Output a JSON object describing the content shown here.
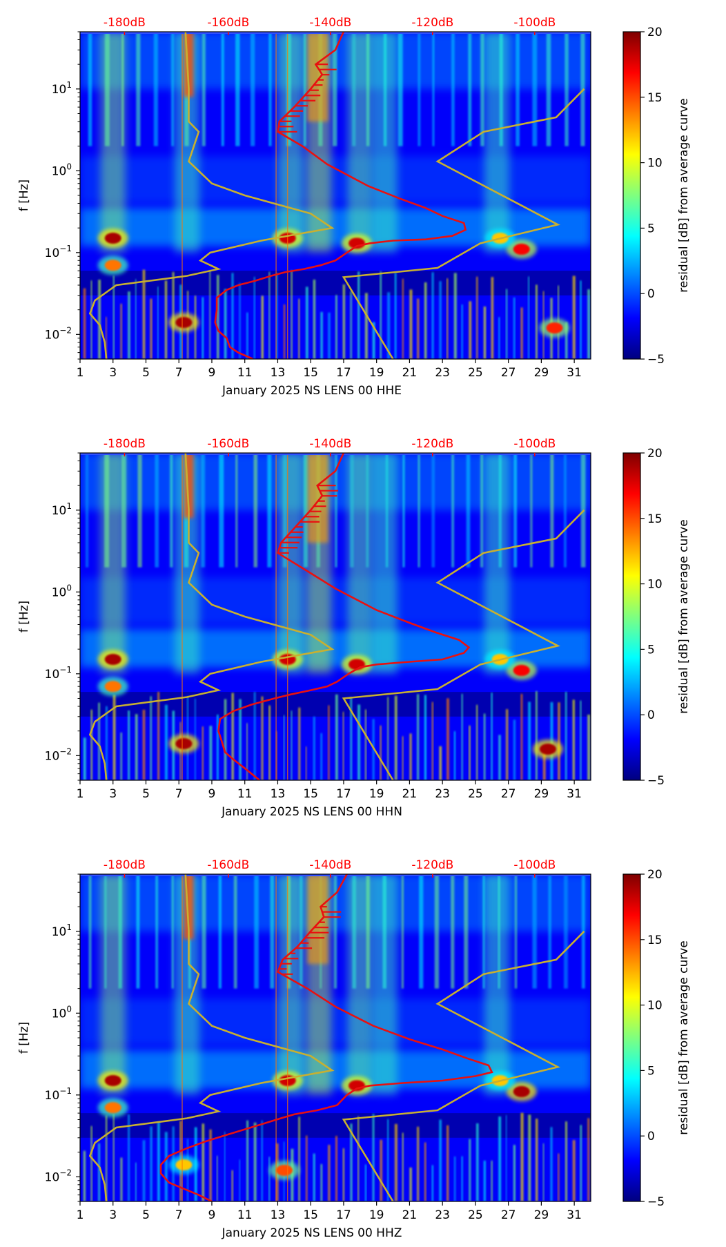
{
  "chart_data": {
    "type": "heatmap",
    "x_ticks": [
      1,
      3,
      5,
      7,
      9,
      11,
      13,
      15,
      17,
      19,
      21,
      23,
      25,
      27,
      29,
      31
    ],
    "xlim": [
      1,
      32
    ],
    "y_scale": "log",
    "ylim": [
      0.005,
      50
    ],
    "y_ticks": [
      {
        "value": 0.01,
        "base": "10",
        "exp": "−2"
      },
      {
        "value": 0.1,
        "base": "10",
        "exp": "−1"
      },
      {
        "value": 1,
        "base": "10",
        "exp": "0"
      },
      {
        "value": 10,
        "base": "10",
        "exp": "1"
      }
    ],
    "ylabel": "f [Hz]",
    "top_db_ticks": [
      {
        "label": "-180dB",
        "x": 3.7
      },
      {
        "label": "-160dB",
        "x": 10.0
      },
      {
        "label": "-140dB",
        "x": 16.2
      },
      {
        "label": "-120dB",
        "x": 22.4
      },
      {
        "label": "-100dB",
        "x": 28.6
      }
    ],
    "colorbar": {
      "label": "residual [dB] from average curve",
      "range": [
        -5,
        20
      ],
      "ticks": [
        {
          "value": 20,
          "label": "20"
        },
        {
          "value": 15,
          "label": "15"
        },
        {
          "value": 10,
          "label": "10"
        },
        {
          "value": 5,
          "label": "5"
        },
        {
          "value": 0,
          "label": "0"
        },
        {
          "value": -5,
          "label": "−5"
        }
      ],
      "colors": [
        "#00007f",
        "#0000ff",
        "#007fff",
        "#00ffff",
        "#7fff7f",
        "#ffff00",
        "#ff7f00",
        "#ff0000",
        "#7f0000"
      ]
    },
    "noise_model_low": [
      [
        2.6,
        0.005
      ],
      [
        2.5,
        0.008
      ],
      [
        2.2,
        0.013
      ],
      [
        1.6,
        0.018
      ],
      [
        1.9,
        0.026
      ],
      [
        3.2,
        0.04
      ],
      [
        7.5,
        0.052
      ],
      [
        9.4,
        0.063
      ],
      [
        8.3,
        0.08
      ],
      [
        8.9,
        0.1
      ],
      [
        12.0,
        0.14
      ],
      [
        16.3,
        0.2
      ],
      [
        15.0,
        0.3
      ],
      [
        11.0,
        0.5
      ],
      [
        9.0,
        0.7
      ],
      [
        7.6,
        1.3
      ],
      [
        8.2,
        3
      ],
      [
        7.6,
        4
      ],
      [
        7.6,
        10
      ],
      [
        7.4,
        50
      ]
    ],
    "noise_model_high": [
      [
        20.0,
        0.005
      ],
      [
        17.0,
        0.05
      ],
      [
        22.7,
        0.065
      ],
      [
        25.3,
        0.13
      ],
      [
        30.0,
        0.22
      ],
      [
        22.7,
        1.3
      ],
      [
        25.5,
        3
      ],
      [
        29.9,
        4.5
      ],
      [
        31.6,
        10
      ]
    ],
    "panels": [
      {
        "xlabel": "January 2025 NS LENS 00 HHE",
        "mean_curve": [
          [
            11.5,
            0.005
          ],
          [
            10.6,
            0.006
          ],
          [
            10.1,
            0.007
          ],
          [
            9.9,
            0.009
          ],
          [
            9.4,
            0.011
          ],
          [
            9.2,
            0.014
          ],
          [
            9.3,
            0.02
          ],
          [
            9.3,
            0.028
          ],
          [
            9.9,
            0.035
          ],
          [
            10.6,
            0.04
          ],
          [
            11.6,
            0.045
          ],
          [
            12.6,
            0.052
          ],
          [
            13.5,
            0.058
          ],
          [
            14.6,
            0.063
          ],
          [
            15.6,
            0.07
          ],
          [
            16.5,
            0.08
          ],
          [
            17.2,
            0.1
          ],
          [
            17.8,
            0.12
          ],
          [
            18.6,
            0.13
          ],
          [
            20.0,
            0.14
          ],
          [
            22.0,
            0.145
          ],
          [
            23.6,
            0.16
          ],
          [
            24.4,
            0.19
          ],
          [
            24.3,
            0.23
          ],
          [
            23.0,
            0.28
          ],
          [
            22.0,
            0.35
          ],
          [
            20.5,
            0.45
          ],
          [
            18.5,
            0.65
          ],
          [
            16.0,
            1.2
          ],
          [
            14.5,
            2.0
          ],
          [
            13.0,
            3.0
          ],
          [
            13.1,
            4.0
          ],
          [
            14.0,
            6.0
          ],
          [
            15.0,
            10.0
          ],
          [
            15.7,
            15
          ],
          [
            15.3,
            20
          ],
          [
            16.5,
            30
          ],
          [
            17.0,
            50
          ]
        ],
        "events": [
          {
            "day": 3.0,
            "f": 0.15,
            "v": 19
          },
          {
            "day": 3.0,
            "f": 0.07,
            "v": 14
          },
          {
            "day": 7.3,
            "f": 0.014,
            "v": 19
          },
          {
            "day": 13.6,
            "f": 0.15,
            "v": 18
          },
          {
            "day": 17.8,
            "f": 0.13,
            "v": 18
          },
          {
            "day": 27.8,
            "f": 0.11,
            "v": 17
          },
          {
            "day": 29.8,
            "f": 0.012,
            "v": 16
          },
          {
            "day": 26.5,
            "f": 0.15,
            "v": 12
          }
        ]
      },
      {
        "xlabel": "January 2025 NS LENS 00 HHN",
        "mean_curve": [
          [
            11.9,
            0.005
          ],
          [
            11.0,
            0.007
          ],
          [
            10.3,
            0.009
          ],
          [
            9.8,
            0.011
          ],
          [
            9.6,
            0.015
          ],
          [
            9.4,
            0.02
          ],
          [
            9.5,
            0.028
          ],
          [
            10.3,
            0.035
          ],
          [
            11.4,
            0.042
          ],
          [
            12.8,
            0.05
          ],
          [
            13.8,
            0.056
          ],
          [
            15.0,
            0.063
          ],
          [
            16.0,
            0.07
          ],
          [
            16.6,
            0.08
          ],
          [
            17.3,
            0.1
          ],
          [
            18.0,
            0.12
          ],
          [
            19.0,
            0.13
          ],
          [
            21.0,
            0.14
          ],
          [
            23.0,
            0.15
          ],
          [
            24.3,
            0.18
          ],
          [
            24.6,
            0.21
          ],
          [
            24.0,
            0.26
          ],
          [
            22.6,
            0.32
          ],
          [
            21.0,
            0.42
          ],
          [
            19.0,
            0.6
          ],
          [
            16.5,
            1.1
          ],
          [
            14.8,
            1.8
          ],
          [
            13.0,
            3.0
          ],
          [
            13.2,
            4.0
          ],
          [
            14.0,
            6.0
          ],
          [
            15.0,
            10.0
          ],
          [
            15.7,
            15
          ],
          [
            15.4,
            20
          ],
          [
            16.5,
            30
          ],
          [
            17.0,
            50
          ]
        ],
        "events": [
          {
            "day": 3.0,
            "f": 0.15,
            "v": 19
          },
          {
            "day": 3.0,
            "f": 0.07,
            "v": 14
          },
          {
            "day": 7.3,
            "f": 0.014,
            "v": 19
          },
          {
            "day": 13.6,
            "f": 0.15,
            "v": 18
          },
          {
            "day": 17.8,
            "f": 0.13,
            "v": 18
          },
          {
            "day": 27.8,
            "f": 0.11,
            "v": 17
          },
          {
            "day": 29.4,
            "f": 0.012,
            "v": 19
          },
          {
            "day": 26.5,
            "f": 0.15,
            "v": 12
          }
        ]
      },
      {
        "xlabel": "January 2025 NS LENS 00 HHZ",
        "mean_curve": [
          [
            9.0,
            0.005
          ],
          [
            8.2,
            0.006
          ],
          [
            7.4,
            0.007
          ],
          [
            6.4,
            0.0085
          ],
          [
            5.9,
            0.011
          ],
          [
            5.9,
            0.014
          ],
          [
            6.4,
            0.018
          ],
          [
            7.4,
            0.022
          ],
          [
            8.6,
            0.027
          ],
          [
            10.0,
            0.033
          ],
          [
            11.0,
            0.038
          ],
          [
            12.2,
            0.045
          ],
          [
            13.2,
            0.052
          ],
          [
            14.0,
            0.058
          ],
          [
            15.4,
            0.065
          ],
          [
            16.6,
            0.075
          ],
          [
            17.2,
            0.1
          ],
          [
            17.8,
            0.12
          ],
          [
            18.6,
            0.13
          ],
          [
            20.6,
            0.14
          ],
          [
            23.0,
            0.15
          ],
          [
            25.0,
            0.17
          ],
          [
            26.0,
            0.19
          ],
          [
            25.8,
            0.23
          ],
          [
            24.5,
            0.28
          ],
          [
            23.0,
            0.36
          ],
          [
            21.0,
            0.48
          ],
          [
            18.8,
            0.7
          ],
          [
            16.5,
            1.2
          ],
          [
            14.8,
            2.0
          ],
          [
            13.0,
            3.2
          ],
          [
            13.3,
            4.5
          ],
          [
            14.2,
            6.5
          ],
          [
            15.0,
            10.0
          ],
          [
            15.8,
            15
          ],
          [
            15.6,
            20
          ],
          [
            16.6,
            30
          ],
          [
            17.2,
            50
          ]
        ],
        "events": [
          {
            "day": 3.0,
            "f": 0.15,
            "v": 19
          },
          {
            "day": 3.0,
            "f": 0.07,
            "v": 14
          },
          {
            "day": 7.3,
            "f": 0.014,
            "v": 12
          },
          {
            "day": 13.6,
            "f": 0.15,
            "v": 18
          },
          {
            "day": 17.8,
            "f": 0.13,
            "v": 18
          },
          {
            "day": 27.8,
            "f": 0.11,
            "v": 19
          },
          {
            "day": 13.4,
            "f": 0.012,
            "v": 15
          },
          {
            "day": 26.5,
            "f": 0.15,
            "v": 12
          }
        ]
      }
    ]
  }
}
